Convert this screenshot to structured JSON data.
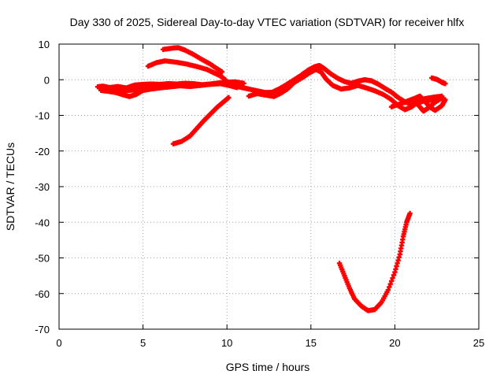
{
  "chart_data": {
    "type": "scatter",
    "title": "Day 330 of 2025, Sidereal Day-to-day VTEC variation (SDTVAR) for receiver hlfx",
    "xlabel": "GPS time / hours",
    "ylabel": "SDTVAR / TECUs",
    "xlim": [
      0,
      25
    ],
    "ylim": [
      -70,
      10
    ],
    "xticks": [
      0,
      5,
      10,
      15,
      20,
      25
    ],
    "yticks": [
      10,
      0,
      -10,
      -20,
      -30,
      -40,
      -50,
      -60,
      -70
    ],
    "grid": true,
    "series_color": "#ff0000",
    "series": [
      {
        "points": [
          [
            2.3,
            -2.0
          ],
          [
            2.6,
            -1.8
          ],
          [
            3.0,
            -2.2
          ],
          [
            3.5,
            -1.9
          ],
          [
            4.0,
            -2.3
          ],
          [
            4.5,
            -1.5
          ],
          [
            5.0,
            -1.3
          ],
          [
            5.5,
            -1.2
          ],
          [
            6.0,
            -1.3
          ],
          [
            6.5,
            -1.1
          ],
          [
            7.0,
            -1.2
          ],
          [
            7.5,
            -1.0
          ],
          [
            8.0,
            -1.1
          ],
          [
            8.5,
            -1.4
          ],
          [
            9.0,
            -1.2
          ],
          [
            9.5,
            -0.9
          ],
          [
            10.0,
            -0.7
          ],
          [
            10.5,
            -0.6
          ],
          [
            11.0,
            -1.0
          ]
        ]
      },
      {
        "points": [
          [
            2.5,
            -3.0
          ],
          [
            3.0,
            -3.3
          ],
          [
            3.4,
            -3.6
          ],
          [
            3.8,
            -4.2
          ],
          [
            4.2,
            -4.7
          ],
          [
            4.6,
            -4.1
          ],
          [
            5.0,
            -3.0
          ],
          [
            5.5,
            -2.6
          ],
          [
            6.0,
            -2.3
          ],
          [
            6.6,
            -2.0
          ],
          [
            7.2,
            -1.7
          ],
          [
            7.8,
            -1.9
          ],
          [
            8.4,
            -1.6
          ],
          [
            9.0,
            -1.3
          ],
          [
            9.6,
            -1.1
          ],
          [
            10.2,
            -1.7
          ],
          [
            10.6,
            -2.2
          ]
        ]
      },
      {
        "points": [
          [
            2.4,
            -2.4
          ],
          [
            3.0,
            -2.8
          ],
          [
            3.6,
            -3.1
          ],
          [
            4.2,
            -3.0
          ],
          [
            4.8,
            -2.7
          ],
          [
            5.3,
            -2.5
          ],
          [
            5.8,
            -1.9
          ],
          [
            6.2,
            -1.6
          ],
          [
            6.7,
            -1.4
          ]
        ]
      },
      {
        "points": [
          [
            6.2,
            8.5
          ],
          [
            6.8,
            8.9
          ],
          [
            7.1,
            9.0
          ],
          [
            7.5,
            8.3
          ],
          [
            8.0,
            7.1
          ],
          [
            8.5,
            5.7
          ],
          [
            9.0,
            4.4
          ],
          [
            9.4,
            3.1
          ],
          [
            9.7,
            2.2
          ]
        ]
      },
      {
        "points": [
          [
            5.3,
            3.8
          ],
          [
            5.8,
            4.8
          ],
          [
            6.3,
            5.3
          ],
          [
            7.0,
            4.9
          ],
          [
            7.6,
            4.4
          ],
          [
            8.2,
            3.7
          ],
          [
            8.8,
            2.9
          ],
          [
            9.2,
            2.0
          ],
          [
            9.6,
            1.1
          ],
          [
            9.9,
            0.0
          ]
        ]
      },
      {
        "points": [
          [
            6.8,
            -18.0
          ],
          [
            7.3,
            -17.3
          ],
          [
            7.8,
            -15.8
          ],
          [
            8.2,
            -13.7
          ],
          [
            8.6,
            -11.6
          ],
          [
            9.0,
            -9.7
          ],
          [
            9.4,
            -7.8
          ],
          [
            9.8,
            -6.2
          ],
          [
            10.1,
            -5.0
          ]
        ]
      },
      {
        "points": [
          [
            10.5,
            -1.8
          ],
          [
            10.9,
            -2.2
          ],
          [
            11.3,
            -2.6
          ],
          [
            11.8,
            -3.1
          ],
          [
            12.3,
            -3.6
          ],
          [
            12.7,
            -3.5
          ],
          [
            13.1,
            -2.6
          ],
          [
            13.5,
            -1.5
          ],
          [
            13.9,
            -0.3
          ],
          [
            14.3,
            0.9
          ],
          [
            14.8,
            2.6
          ],
          [
            15.2,
            3.6
          ],
          [
            15.5,
            4.0
          ],
          [
            15.8,
            3.1
          ],
          [
            16.2,
            1.6
          ],
          [
            16.6,
            0.4
          ],
          [
            17.0,
            -0.5
          ],
          [
            17.4,
            -1.0
          ],
          [
            17.8,
            -0.4
          ],
          [
            18.2,
            0.0
          ],
          [
            18.6,
            -0.3
          ],
          [
            19.0,
            -1.2
          ],
          [
            19.4,
            -2.4
          ],
          [
            19.8,
            -3.5
          ],
          [
            20.2,
            -5.0
          ],
          [
            20.6,
            -6.2
          ],
          [
            21.0,
            -6.9
          ],
          [
            21.4,
            -6.4
          ],
          [
            21.8,
            -5.9
          ],
          [
            22.2,
            -5.7
          ],
          [
            22.6,
            -5.4
          ],
          [
            22.9,
            -5.2
          ]
        ]
      },
      {
        "points": [
          [
            11.3,
            -4.6
          ],
          [
            11.8,
            -3.9
          ],
          [
            12.3,
            -4.3
          ],
          [
            12.8,
            -4.7
          ],
          [
            13.2,
            -3.8
          ],
          [
            13.6,
            -2.6
          ],
          [
            14.0,
            -0.8
          ],
          [
            14.5,
            0.6
          ],
          [
            14.9,
            1.9
          ],
          [
            15.3,
            2.9
          ],
          [
            15.6,
            2.2
          ],
          [
            15.9,
            0.2
          ],
          [
            16.3,
            -1.6
          ],
          [
            16.8,
            -2.6
          ],
          [
            17.3,
            -2.3
          ],
          [
            17.8,
            -1.6
          ],
          [
            18.3,
            -2.3
          ],
          [
            18.8,
            -3.1
          ],
          [
            19.3,
            -4.1
          ],
          [
            19.8,
            -5.6
          ],
          [
            20.2,
            -7.3
          ],
          [
            20.6,
            -8.4
          ],
          [
            21.0,
            -7.6
          ],
          [
            21.4,
            -6.1
          ],
          [
            21.8,
            -5.3
          ],
          [
            22.3,
            -4.9
          ],
          [
            22.8,
            -4.6
          ]
        ]
      },
      {
        "points": [
          [
            19.8,
            -7.6
          ],
          [
            20.3,
            -6.8
          ],
          [
            20.8,
            -5.9
          ],
          [
            21.2,
            -5.2
          ],
          [
            21.5,
            -4.6
          ],
          [
            21.8,
            -6.2
          ],
          [
            22.1,
            -7.7
          ],
          [
            22.4,
            -8.6
          ],
          [
            22.8,
            -7.3
          ],
          [
            23.0,
            -5.6
          ]
        ]
      },
      {
        "points": [
          [
            20.6,
            -6.4
          ],
          [
            21.0,
            -5.8
          ],
          [
            21.4,
            -7.1
          ],
          [
            21.7,
            -8.8
          ],
          [
            22.0,
            -7.9
          ],
          [
            22.4,
            -6.3
          ],
          [
            22.8,
            -5.1
          ]
        ]
      },
      {
        "points": [
          [
            22.2,
            0.5
          ],
          [
            22.5,
            0.1
          ],
          [
            22.8,
            -0.7
          ],
          [
            23.0,
            -1.1
          ]
        ]
      },
      {
        "points": [
          [
            16.7,
            -51.5
          ],
          [
            17.0,
            -55.0
          ],
          [
            17.3,
            -58.5
          ],
          [
            17.6,
            -61.5
          ],
          [
            18.0,
            -63.5
          ],
          [
            18.4,
            -64.8
          ],
          [
            18.8,
            -64.5
          ],
          [
            19.2,
            -62.5
          ],
          [
            19.6,
            -59.0
          ],
          [
            20.0,
            -54.0
          ],
          [
            20.3,
            -49.0
          ],
          [
            20.5,
            -44.0
          ],
          [
            20.7,
            -40.0
          ],
          [
            20.9,
            -37.5
          ]
        ]
      }
    ]
  }
}
